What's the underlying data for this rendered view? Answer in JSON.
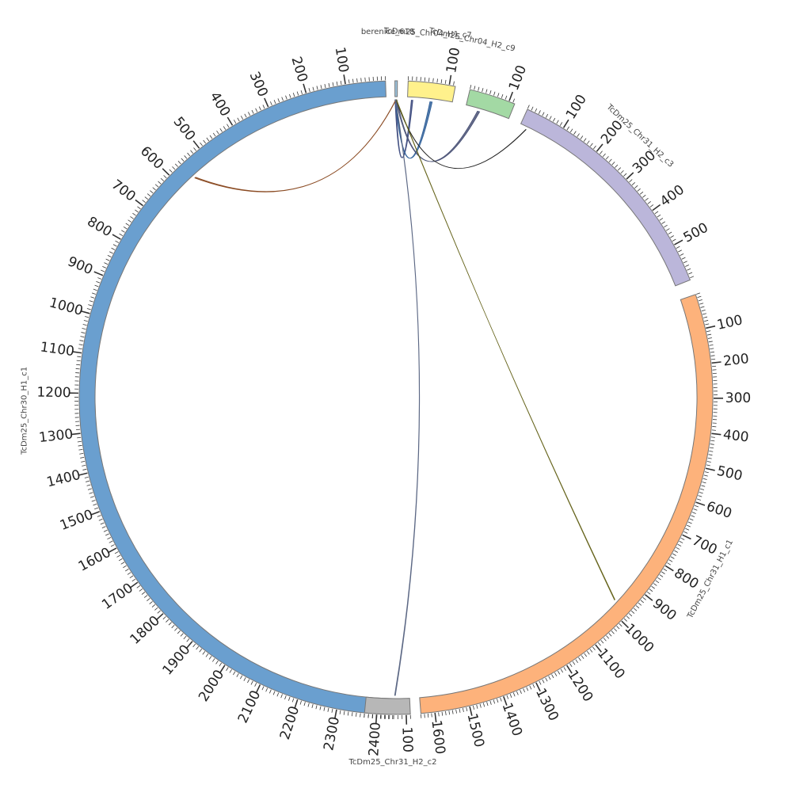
{
  "diagram": {
    "type": "circos",
    "chromosomes": [
      {
        "id": "c1_30",
        "name": "TcDm25_Chr30_H1_c1",
        "length": 2440,
        "color": "#6a9fcf",
        "ticks": [
          100,
          200,
          300,
          400,
          500,
          600,
          700,
          800,
          900,
          1000,
          1100,
          1200,
          1300,
          1400,
          1500,
          1600,
          1700,
          1800,
          1900,
          2000,
          2100,
          2200,
          2300,
          2400
        ]
      },
      {
        "id": "berenice",
        "name": "berenice_618",
        "length": 6,
        "color": "#9cc3dd",
        "ticks": []
      },
      {
        "id": "c4_chr04",
        "name": "TcDm25_Chr04_H1_c7",
        "length": 115,
        "color": "#fff18c",
        "ticks": [
          100
        ]
      },
      {
        "id": "c9_chr04",
        "name": "TcDm25_Chr04_H2_c9",
        "length": 115,
        "color": "#a3d9a4",
        "ticks": [
          100
        ]
      },
      {
        "id": "c3_chr31",
        "name": "TcDm25_Chr31_H2_c3",
        "length": 595,
        "color": "#bbb6da",
        "ticks": [
          100,
          200,
          300,
          400,
          500
        ]
      },
      {
        "id": "c1_31",
        "name": "TcDm25_Chr31_H1_c1",
        "length": 1640,
        "color": "#fdb27b",
        "ticks": [
          100,
          200,
          300,
          400,
          500,
          600,
          700,
          800,
          900,
          1000,
          1100,
          1200,
          1300,
          1400,
          1500,
          1600
        ]
      },
      {
        "id": "c2_chr31",
        "name": "TcDm25_Chr31_H2_c2",
        "length": 110,
        "color": "#b7b7b7",
        "ticks": [
          100
        ]
      }
    ],
    "links": [
      {
        "from": "berenice",
        "a1": 0,
        "a2": 3,
        "to": "c4_chr04",
        "b1": 10,
        "b2": 14,
        "color": "#3c4a7e"
      },
      {
        "from": "berenice",
        "a1": 1,
        "a2": 3,
        "to": "c4_chr04",
        "b1": 58,
        "b2": 64,
        "color": "#2f5f99"
      },
      {
        "from": "berenice",
        "a1": 2,
        "a2": 5,
        "to": "c9_chr04",
        "b1": 32,
        "b2": 38,
        "color": "#4a5276"
      },
      {
        "from": "berenice",
        "a1": 3,
        "a2": 4,
        "to": "c3_chr31",
        "b1": 18,
        "b2": 19,
        "color": "#222222"
      },
      {
        "from": "berenice",
        "a1": 2,
        "a2": 3,
        "to": "c1_30",
        "b1": 555,
        "b2": 558,
        "color": "#8a4a22"
      },
      {
        "from": "berenice",
        "a1": 3,
        "a2": 4,
        "to": "c1_31",
        "b1": 968,
        "b2": 970,
        "color": "#66641c"
      },
      {
        "from": "berenice",
        "a1": 1,
        "a2": 2,
        "to": "c2_chr31",
        "b1": 72,
        "b2": 74,
        "color": "#5b6784"
      }
    ]
  }
}
